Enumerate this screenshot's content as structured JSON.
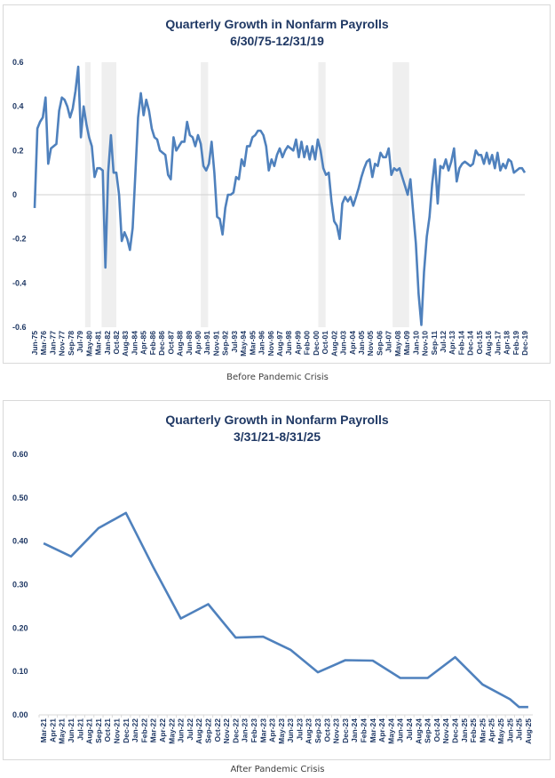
{
  "chart_data": [
    {
      "type": "line",
      "title": "Quarterly Growth in Nonfarm Payrolls",
      "subtitle": "6/30/75-12/31/19",
      "caption": "Before Pandemic Crisis",
      "xlabel": "",
      "ylabel": "",
      "ylim": [
        -0.6,
        0.6
      ],
      "yticks": [
        "0.6",
        "0.4",
        "0.2",
        "0",
        "-0.2",
        "-0.4",
        "-0.6"
      ],
      "ytick_values": [
        0.6,
        0.4,
        0.2,
        0,
        -0.2,
        -0.4,
        -0.6
      ],
      "grid": false,
      "zero_line": true,
      "line_color": "#4f81bd",
      "recession_color": "#efefef",
      "x_tick_labels": [
        "Jun-75",
        "Mar-76",
        "Jan-77",
        "Nov-77",
        "Sep-78",
        "Jul-79",
        "May-80",
        "Mar-81",
        "Jan-82",
        "Oct-82",
        "Aug-83",
        "Jun-84",
        "Apr-85",
        "Feb-86",
        "Dec-86",
        "Oct-87",
        "Aug-88",
        "Jun-89",
        "Apr-90",
        "Jan-91",
        "Nov-91",
        "Sep-92",
        "Jul-93",
        "May-94",
        "Mar-95",
        "Jan-96",
        "Nov-96",
        "Aug-97",
        "Jun-98",
        "Apr-99",
        "Feb-00",
        "Dec-00",
        "Oct-01",
        "Aug-02",
        "Jun-03",
        "Apr-04",
        "Jan-05",
        "Nov-05",
        "Sep-06",
        "Jul-07",
        "May-08",
        "Mar-09",
        "Jan-10",
        "Nov-10",
        "Sep-11",
        "Jul-12",
        "Apr-13",
        "Feb-14",
        "Dec-14",
        "Oct-15",
        "Aug-16",
        "Jun-17",
        "Apr-18",
        "Feb-19",
        "Dec-19"
      ],
      "recessions": [
        {
          "start": "Jan-80",
          "end": "Jul-80"
        },
        {
          "start": "Jul-81",
          "end": "Nov-82"
        },
        {
          "start": "Jul-90",
          "end": "Mar-91"
        },
        {
          "start": "Mar-01",
          "end": "Nov-01"
        },
        {
          "start": "Dec-07",
          "end": "Jun-09"
        }
      ],
      "series": [
        {
          "name": "Quarterly Growth in Nonfarm Payrolls",
          "x_start": "Jun-75",
          "x_end": "Dec-19",
          "frequency": "quarterly",
          "values": [
            -0.06,
            0.3,
            0.33,
            0.35,
            0.44,
            0.14,
            0.21,
            0.22,
            0.23,
            0.38,
            0.44,
            0.43,
            0.4,
            0.35,
            0.39,
            0.47,
            0.58,
            0.26,
            0.4,
            0.32,
            0.26,
            0.22,
            0.08,
            0.12,
            0.12,
            0.11,
            -0.33,
            0.1,
            0.27,
            0.1,
            0.1,
            0.0,
            -0.21,
            -0.17,
            -0.2,
            -0.25,
            -0.15,
            0.1,
            0.35,
            0.46,
            0.36,
            0.43,
            0.38,
            0.3,
            0.26,
            0.25,
            0.2,
            0.19,
            0.18,
            0.09,
            0.07,
            0.26,
            0.2,
            0.22,
            0.24,
            0.24,
            0.33,
            0.27,
            0.26,
            0.22,
            0.27,
            0.23,
            0.13,
            0.11,
            0.14,
            0.24,
            0.1,
            -0.1,
            -0.11,
            -0.18,
            -0.06,
            0.0,
            0.0,
            0.01,
            0.08,
            0.07,
            0.16,
            0.13,
            0.22,
            0.22,
            0.26,
            0.27,
            0.29,
            0.29,
            0.27,
            0.22,
            0.11,
            0.16,
            0.13,
            0.18,
            0.21,
            0.17,
            0.2,
            0.22,
            0.21,
            0.2,
            0.25,
            0.17,
            0.24,
            0.17,
            0.22,
            0.16,
            0.22,
            0.16,
            0.25,
            0.2,
            0.12,
            0.09,
            0.1,
            -0.03,
            -0.12,
            -0.14,
            -0.2,
            -0.04,
            -0.01,
            -0.03,
            -0.01,
            -0.05,
            -0.01,
            0.03,
            0.08,
            0.12,
            0.15,
            0.16,
            0.08,
            0.14,
            0.13,
            0.19,
            0.17,
            0.17,
            0.21,
            0.09,
            0.12,
            0.11,
            0.12,
            0.08,
            0.04,
            0.0,
            0.07,
            -0.08,
            -0.22,
            -0.45,
            -0.59,
            -0.35,
            -0.19,
            -0.1,
            0.05,
            0.16,
            -0.04,
            0.13,
            0.12,
            0.16,
            0.11,
            0.15,
            0.21,
            0.06,
            0.12,
            0.14,
            0.15,
            0.14,
            0.13,
            0.14,
            0.2,
            0.18,
            0.18,
            0.14,
            0.19,
            0.14,
            0.18,
            0.12,
            0.19,
            0.11,
            0.14,
            0.12,
            0.16,
            0.15,
            0.1,
            0.11,
            0.12,
            0.12,
            0.1
          ]
        }
      ]
    },
    {
      "type": "line",
      "title": "Quarterly Growth in Nonfarm Payrolls",
      "subtitle": "3/31/21-8/31/25",
      "caption": "After Pandemic Crisis",
      "xlabel": "",
      "ylabel": "",
      "ylim": [
        0,
        0.6
      ],
      "yticks": [
        "0.60",
        "0.50",
        "0.40",
        "0.30",
        "0.20",
        "0.10",
        "0.00"
      ],
      "ytick_values": [
        0.6,
        0.5,
        0.4,
        0.3,
        0.2,
        0.1,
        0.0
      ],
      "grid": false,
      "line_color": "#4f81bd",
      "x_tick_labels": [
        "Mar-21",
        "Apr-21",
        "May-21",
        "Jun-21",
        "Jul-21",
        "Aug-21",
        "Sep-21",
        "Oct-21",
        "Nov-21",
        "Dec-21",
        "Jan-22",
        "Feb-22",
        "Mar-22",
        "Apr-22",
        "May-22",
        "Jun-22",
        "Jul-22",
        "Aug-22",
        "Sep-22",
        "Oct-22",
        "Nov-22",
        "Dec-22",
        "Jan-23",
        "Feb-23",
        "Mar-23",
        "Apr-23",
        "May-23",
        "Jun-23",
        "Jul-23",
        "Aug-23",
        "Sep-23",
        "Oct-23",
        "Nov-23",
        "Dec-23",
        "Jan-24",
        "Feb-24",
        "Mar-24",
        "Apr-24",
        "May-24",
        "Jun-24",
        "Jul-24",
        "Aug-24",
        "Sep-24",
        "Oct-24",
        "Nov-24",
        "Dec-24",
        "Jan-25",
        "Feb-25",
        "Mar-25",
        "Apr-25",
        "May-25",
        "Jun-25",
        "Jul-25",
        "Aug-25"
      ],
      "series": [
        {
          "name": "Quarterly Growth in Nonfarm Payrolls",
          "points": [
            {
              "x": "Mar-21",
              "y": 0.395
            },
            {
              "x": "Jun-21",
              "y": 0.365
            },
            {
              "x": "Sep-21",
              "y": 0.43
            },
            {
              "x": "Dec-21",
              "y": 0.465
            },
            {
              "x": "Mar-22",
              "y": 0.34
            },
            {
              "x": "Jun-22",
              "y": 0.222
            },
            {
              "x": "Sep-22",
              "y": 0.255
            },
            {
              "x": "Dec-22",
              "y": 0.178
            },
            {
              "x": "Mar-23",
              "y": 0.18
            },
            {
              "x": "Jun-23",
              "y": 0.15
            },
            {
              "x": "Sep-23",
              "y": 0.098
            },
            {
              "x": "Dec-23",
              "y": 0.126
            },
            {
              "x": "Mar-24",
              "y": 0.125
            },
            {
              "x": "Jun-24",
              "y": 0.085
            },
            {
              "x": "Sep-24",
              "y": 0.085
            },
            {
              "x": "Dec-24",
              "y": 0.133
            },
            {
              "x": "Mar-25",
              "y": 0.07
            },
            {
              "x": "Jun-25",
              "y": 0.036
            },
            {
              "x": "Jul-25",
              "y": 0.018
            },
            {
              "x": "Aug-25",
              "y": 0.018
            }
          ]
        }
      ]
    }
  ]
}
